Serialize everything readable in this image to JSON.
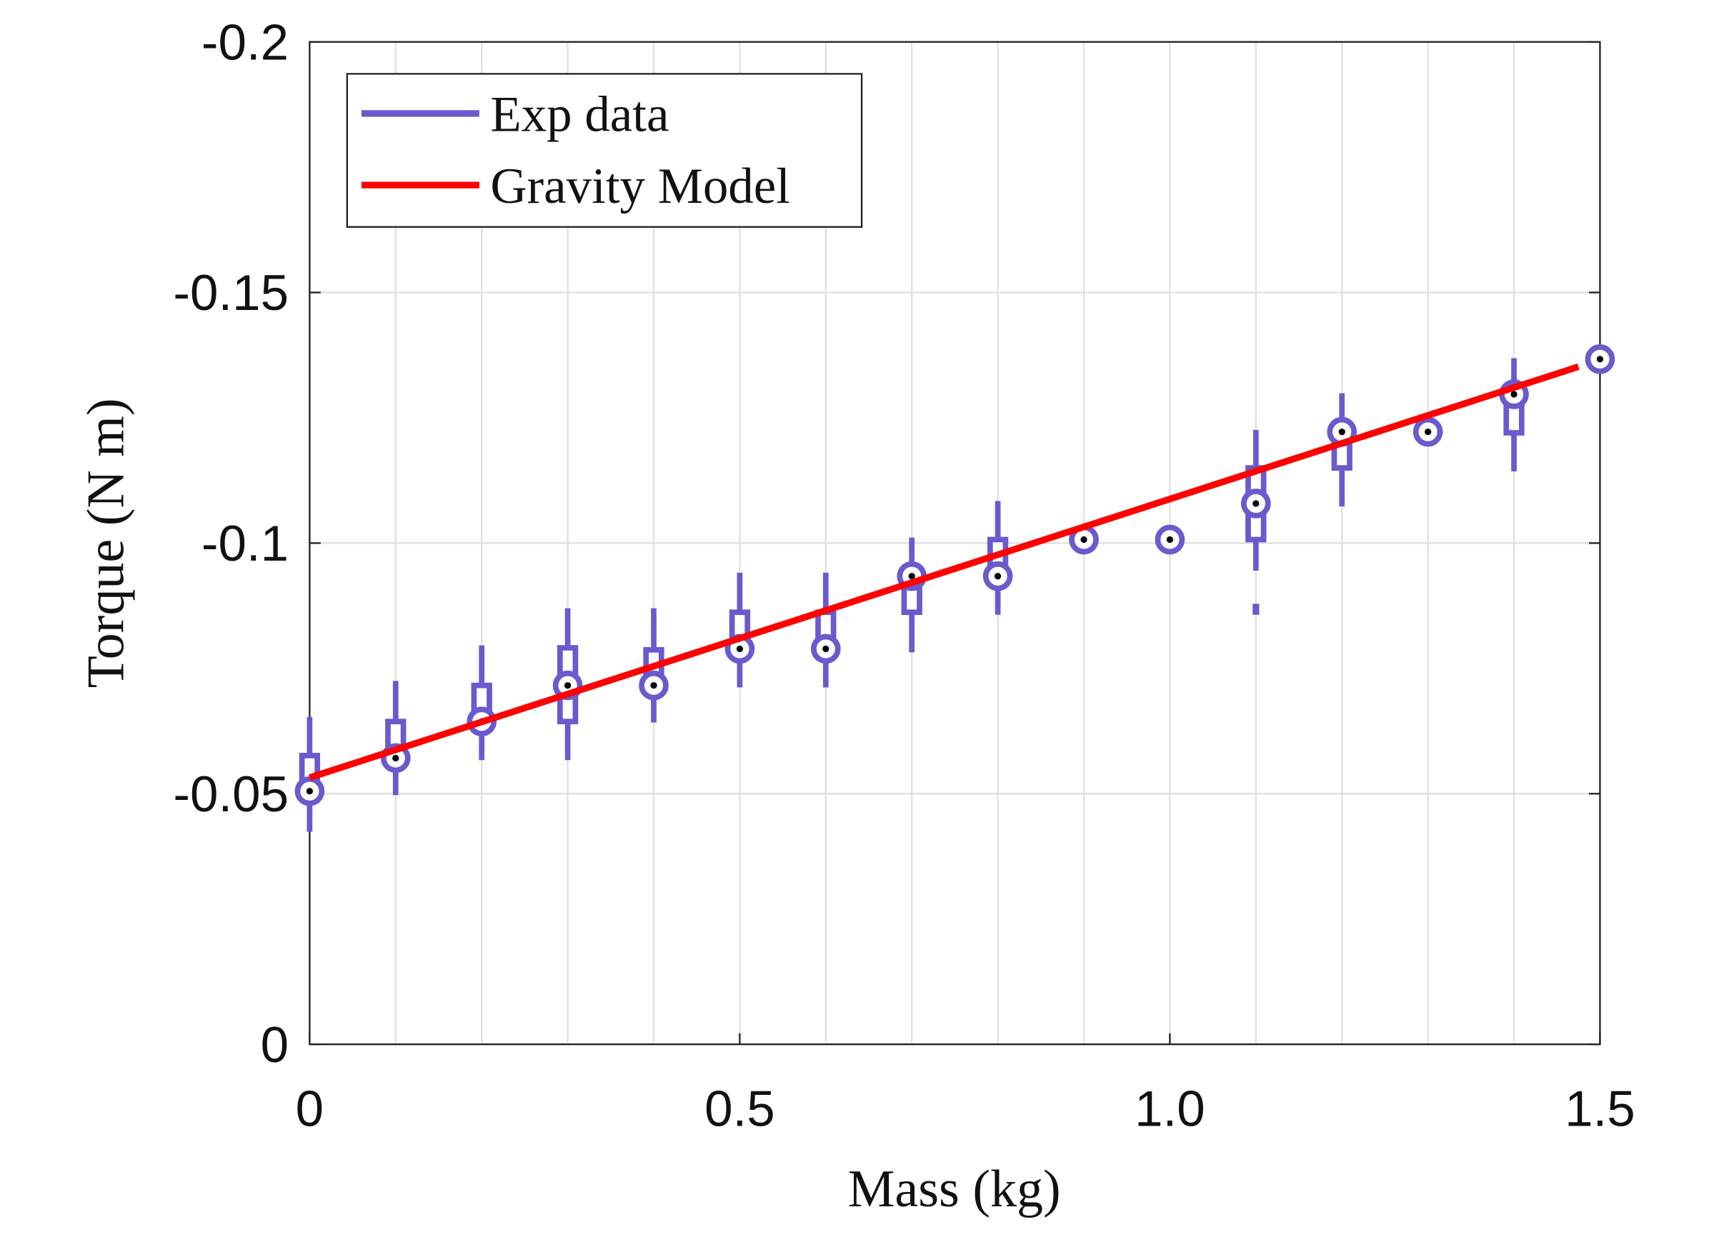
{
  "chart_data": {
    "type": "box",
    "xlabel": "Mass (kg)",
    "ylabel": "Torque (N m)",
    "xlim": [
      0,
      1.5
    ],
    "ylim": [
      0,
      -0.2
    ],
    "xticks": [
      0,
      0.5,
      {
        "value": 1.0,
        "label": "1.0"
      },
      1.5
    ],
    "yticks": [
      -0.2,
      -0.15,
      -0.1,
      -0.05,
      0
    ],
    "x_minor_grid": [
      0.1,
      0.2,
      0.3,
      0.4,
      0.6,
      0.7,
      0.8,
      0.9,
      1.1,
      1.2,
      1.3,
      1.4
    ],
    "grid": true,
    "legend_position": "upper left",
    "series": [
      {
        "name": "Exp data",
        "color": "#6a5acd",
        "x": [
          0,
          0.1,
          0.2,
          0.3,
          0.4,
          0.5,
          0.6,
          0.7,
          0.8,
          0.9,
          1.0,
          1.1,
          1.2,
          1.3,
          1.4,
          1.5
        ],
        "median": [
          -0.0505,
          -0.0571,
          -0.0644,
          -0.0716,
          -0.0716,
          -0.0789,
          -0.0789,
          -0.0934,
          -0.0934,
          -0.1007,
          -0.1007,
          -0.1079,
          -0.1222,
          -0.1222,
          -0.1297,
          -0.1367
        ],
        "q1": [
          -0.0505,
          -0.0567,
          -0.0633,
          -0.0644,
          -0.0716,
          -0.0789,
          -0.0789,
          -0.0862,
          -0.0934,
          -0.1007,
          -0.1007,
          -0.1007,
          -0.115,
          -0.1222,
          -0.122,
          -0.1367
        ],
        "q3": [
          -0.0576,
          -0.0644,
          -0.0716,
          -0.0791,
          -0.0787,
          -0.0862,
          -0.0862,
          -0.0936,
          -0.1007,
          -0.1007,
          -0.1007,
          -0.115,
          -0.1222,
          -0.1222,
          -0.1297,
          -0.1367
        ],
        "whisker_low": [
          -0.0424,
          -0.0497,
          -0.0567,
          -0.0567,
          -0.0642,
          -0.0712,
          -0.0712,
          -0.0782,
          -0.0857,
          -0.1007,
          -0.1007,
          -0.0945,
          -0.1073,
          -0.1222,
          -0.1143,
          -0.1367
        ],
        "whisker_high": [
          -0.0653,
          -0.0725,
          -0.0796,
          -0.087,
          -0.087,
          -0.0941,
          -0.0941,
          -0.1011,
          -0.1084,
          -0.1007,
          -0.1007,
          -0.1226,
          -0.1299,
          -0.1222,
          -0.1369,
          -0.1367
        ],
        "outliers": [
          {
            "x": 1.1,
            "value": -0.0868
          }
        ]
      },
      {
        "name": "Gravity Model",
        "type": "line",
        "color": "#ff0000",
        "x": [
          0,
          1.475
        ],
        "values": [
          -0.0532,
          -0.1352
        ]
      }
    ]
  }
}
